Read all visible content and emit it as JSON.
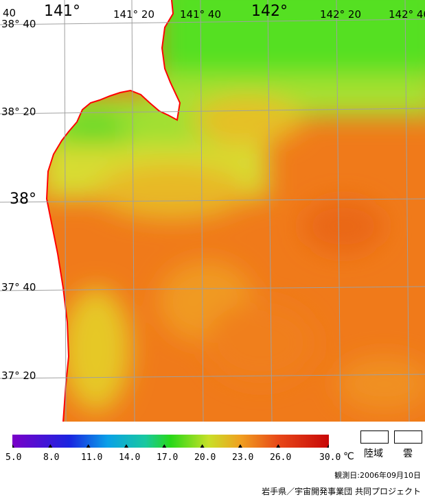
{
  "map": {
    "lon_labels": [
      "141°",
      "141° 20",
      "141° 40",
      "142°",
      "142° 20",
      "142° 40"
    ],
    "lat_labels": [
      "38° 40",
      "38° 20",
      "38°",
      "37° 40",
      "37° 20"
    ],
    "lon_range": [
      140.833,
      142.75
    ],
    "lat_range": [
      37.133,
      38.733
    ],
    "coastline_color": "#ff0000",
    "grid_color": "#a0a0a0"
  },
  "colorbar": {
    "ticks": [
      "5.0",
      "8.0",
      "11.0",
      "14.0",
      "17.0",
      "20.0",
      "23.0",
      "26.0",
      "30.0"
    ],
    "unit": "℃",
    "min": 5.0,
    "max": 30.0
  },
  "legend": {
    "land_label": "陸域",
    "cloud_label": "雲"
  },
  "footer": {
    "observation_date": "観測日:2006年09月10日",
    "credit": "岩手県／宇宙開発事業団 共同プロジェクト"
  }
}
